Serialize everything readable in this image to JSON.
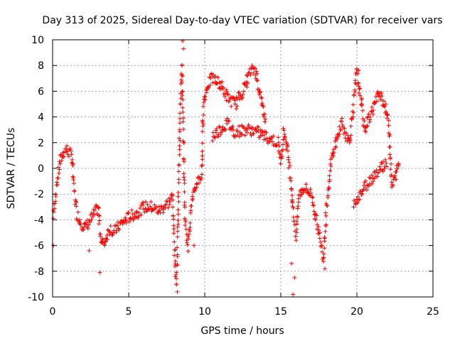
{
  "chart_data": {
    "type": "scatter",
    "title": "Day 313 of 2025, Sidereal Day-to-day VTEC variation (SDTVAR) for receiver vars",
    "xlabel": "GPS time / hours",
    "ylabel": "SDTVAR / TECUs",
    "xlim": [
      0,
      25
    ],
    "ylim": [
      -10,
      10
    ],
    "xticks": [
      "0",
      "5",
      "10",
      "15",
      "20",
      "25"
    ],
    "yticks": [
      "-10",
      "-8",
      "-6",
      "-4",
      "-2",
      "0",
      "2",
      "4",
      "6",
      "8",
      "10"
    ],
    "grid": true,
    "marker": "+",
    "color": "#ff0000",
    "series": [
      {
        "name": "SDTVAR",
        "trend": [
          [
            0.0,
            -4.5
          ],
          [
            0.1,
            -3.0
          ],
          [
            0.2,
            -2.0
          ],
          [
            0.3,
            -1.0
          ],
          [
            0.5,
            0.5
          ],
          [
            0.7,
            1.2
          ],
          [
            0.9,
            1.5
          ],
          [
            1.1,
            1.2
          ],
          [
            1.3,
            0.8
          ],
          [
            1.4,
            -1.5
          ],
          [
            1.6,
            -3.5
          ],
          [
            1.9,
            -4.3
          ],
          [
            2.2,
            -4.6
          ],
          [
            3.0,
            -3.0
          ],
          [
            3.1,
            -4.8
          ],
          [
            3.3,
            -6.0
          ],
          [
            3.8,
            -4.6
          ],
          [
            4.0,
            -5.0
          ],
          [
            4.5,
            -4.3
          ],
          [
            5.0,
            -3.8
          ],
          [
            5.5,
            -3.5
          ],
          [
            6.0,
            -3.0
          ],
          [
            6.5,
            -3.0
          ],
          [
            7.0,
            -3.3
          ],
          [
            7.5,
            -2.8
          ],
          [
            7.9,
            -2.2
          ],
          [
            8.0,
            -6.0
          ],
          [
            8.1,
            -8.0
          ],
          [
            8.15,
            -9.0
          ],
          [
            8.3,
            0.0
          ],
          [
            8.4,
            5.0
          ],
          [
            8.5,
            8.0
          ],
          [
            8.6,
            2.0
          ],
          [
            8.7,
            -4.0
          ],
          [
            8.9,
            -6.0
          ],
          [
            9.1,
            -3.0
          ],
          [
            9.5,
            -1.0
          ],
          [
            9.8,
            -0.5
          ],
          [
            9.9,
            5.0
          ],
          [
            10.2,
            6.5
          ],
          [
            10.5,
            7.0
          ],
          [
            11.0,
            6.6
          ],
          [
            11.5,
            5.5
          ],
          [
            12.0,
            5.0
          ],
          [
            12.5,
            6.0
          ],
          [
            13.0,
            7.5
          ],
          [
            13.3,
            7.8
          ],
          [
            13.6,
            6.0
          ],
          [
            14.0,
            3.5
          ],
          [
            10.5,
            2.5
          ],
          [
            11.0,
            3.0
          ],
          [
            11.5,
            3.5
          ],
          [
            12.0,
            2.8
          ],
          [
            12.5,
            3.0
          ],
          [
            13.0,
            3.0
          ],
          [
            13.5,
            2.8
          ],
          [
            14.8,
            2.0
          ],
          [
            15.0,
            0.5
          ],
          [
            15.2,
            3.0
          ],
          [
            15.5,
            1.0
          ],
          [
            15.8,
            -3.0
          ],
          [
            16.0,
            -5.5
          ],
          [
            16.2,
            -2.0
          ],
          [
            16.5,
            -1.5
          ],
          [
            17.0,
            -2.0
          ],
          [
            17.5,
            -5.0
          ],
          [
            17.8,
            -7.0
          ],
          [
            18.0,
            -3.0
          ],
          [
            18.3,
            0.5
          ],
          [
            18.6,
            2.0
          ],
          [
            19.0,
            3.5
          ],
          [
            19.5,
            2.0
          ],
          [
            20.0,
            7.5
          ],
          [
            20.3,
            5.0
          ],
          [
            20.5,
            3.0
          ],
          [
            21.0,
            4.5
          ],
          [
            21.5,
            6.0
          ],
          [
            21.8,
            5.0
          ],
          [
            22.1,
            3.5
          ],
          [
            22.3,
            -1.5
          ],
          [
            22.8,
            0.5
          ],
          [
            19.8,
            -2.8
          ],
          [
            20.2,
            -2.0
          ],
          [
            20.8,
            -1.0
          ],
          [
            21.5,
            0.0
          ],
          [
            22.0,
            0.5
          ]
        ],
        "outliers": [
          [
            0.05,
            -6.0
          ],
          [
            2.4,
            -6.4
          ],
          [
            3.1,
            -8.1
          ],
          [
            8.2,
            -9.6
          ],
          [
            8.55,
            9.9
          ],
          [
            8.6,
            9.3
          ],
          [
            9.3,
            -6.0
          ],
          [
            15.7,
            -7.4
          ],
          [
            15.8,
            -9.8
          ],
          [
            15.9,
            -8.5
          ],
          [
            17.9,
            -7.8
          ],
          [
            20.1,
            7.6
          ]
        ]
      }
    ]
  }
}
